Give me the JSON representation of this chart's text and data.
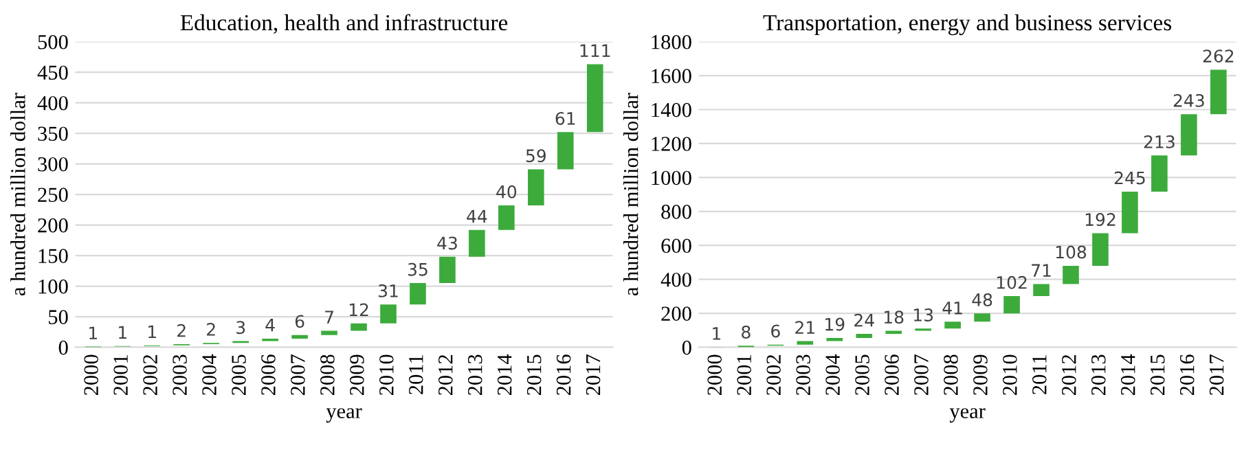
{
  "chart_data": [
    {
      "type": "bar",
      "title": "Education, health and infrastructure",
      "xlabel": "year",
      "ylabel": "a hundred million dollar",
      "categories": [
        "2000",
        "2001",
        "2002",
        "2003",
        "2004",
        "2005",
        "2006",
        "2007",
        "2008",
        "2009",
        "2010",
        "2011",
        "2012",
        "2013",
        "2014",
        "2015",
        "2016",
        "2017"
      ],
      "values": [
        1,
        1,
        1,
        2,
        2,
        3,
        4,
        6,
        7,
        12,
        31,
        35,
        43,
        44,
        40,
        59,
        61,
        111
      ],
      "base": [
        0,
        1,
        2,
        3,
        5,
        7,
        10,
        14,
        20,
        27,
        39,
        70,
        105,
        148,
        192,
        232,
        291,
        352
      ],
      "color": "#3cab3c",
      "data_labels": true,
      "grid": "y",
      "ylim": [
        0,
        500
      ],
      "yticks": [
        0,
        50,
        100,
        150,
        200,
        250,
        300,
        350,
        400,
        450,
        500
      ]
    },
    {
      "type": "bar",
      "title": "Transportation, energy and business services",
      "xlabel": "year",
      "ylabel": "a hundred million dollar",
      "categories": [
        "2000",
        "2001",
        "2002",
        "2003",
        "2004",
        "2005",
        "2006",
        "2007",
        "2008",
        "2009",
        "2010",
        "2011",
        "2012",
        "2013",
        "2014",
        "2015",
        "2016",
        "2017"
      ],
      "values": [
        1,
        8,
        6,
        21,
        19,
        24,
        18,
        13,
        41,
        48,
        102,
        71,
        108,
        192,
        245,
        213,
        243,
        262
      ],
      "base": [
        0,
        1,
        9,
        15,
        36,
        55,
        79,
        97,
        110,
        151,
        199,
        301,
        372,
        480,
        672,
        917,
        1130,
        1373
      ],
      "color": "#3cab3c",
      "data_labels": true,
      "grid": "y",
      "ylim": [
        0,
        1800
      ],
      "yticks": [
        0,
        200,
        400,
        600,
        800,
        1000,
        1200,
        1400,
        1600,
        1800
      ]
    }
  ]
}
